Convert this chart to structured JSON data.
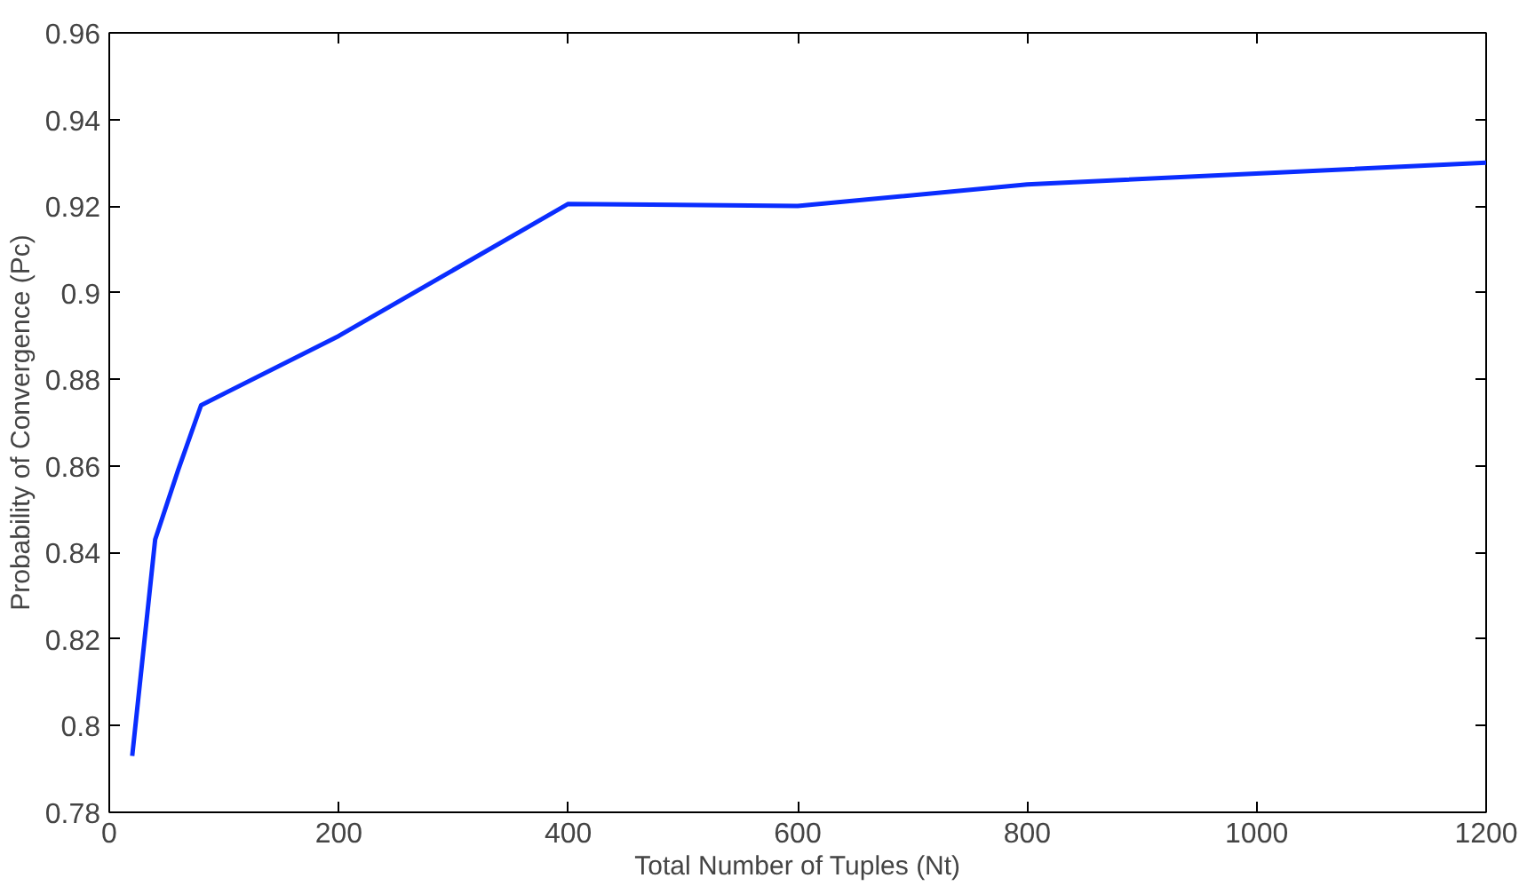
{
  "chart_data": {
    "type": "line",
    "xlabel": "Total Number of Tuples (Nt)",
    "ylabel": "Probability of Convergence (Pc)",
    "x": [
      20,
      40,
      60,
      80,
      200,
      400,
      600,
      800,
      1200
    ],
    "series": [
      {
        "color": "#0a2dff",
        "values": [
          0.793,
          0.843,
          0.859,
          0.874,
          0.89,
          0.9205,
          0.92,
          0.925,
          0.93
        ]
      }
    ],
    "xlim": [
      0,
      1200
    ],
    "ylim": [
      0.78,
      0.96
    ],
    "xticks": [
      0,
      200,
      400,
      600,
      800,
      1000,
      1200
    ],
    "yticks": [
      0.78,
      0.8,
      0.82,
      0.84,
      0.86,
      0.88,
      0.9,
      0.92,
      0.94,
      0.96
    ],
    "grid": false,
    "line_style": "solid",
    "marker": "none"
  }
}
